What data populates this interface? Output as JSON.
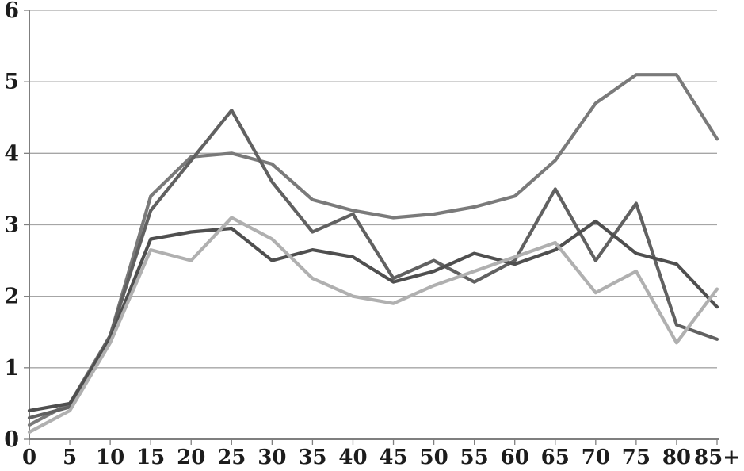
{
  "chart": {
    "background": "#ffffff",
    "axis_color": "#7f7f7f",
    "gridline_color": "#a6a6a6",
    "label_color": "#1c1c1c",
    "chart_data": {
      "type": "line",
      "title": "",
      "xlabel": "",
      "ylabel": "",
      "grid": true,
      "legend": "none",
      "ylim": [
        0,
        6
      ],
      "y_ticks": [
        0,
        1,
        2,
        3,
        4,
        5,
        6
      ],
      "categories": [
        "0",
        "5",
        "10",
        "15",
        "20",
        "25",
        "30",
        "35",
        "40",
        "45",
        "50",
        "55",
        "60",
        "65",
        "70",
        "75",
        "80",
        "85+"
      ],
      "series": [
        {
          "name": "medium-gray-line",
          "color": "#7a7a7a",
          "values": [
            0.2,
            0.5,
            1.45,
            3.4,
            3.95,
            4.0,
            3.85,
            3.35,
            3.2,
            3.1,
            3.15,
            3.25,
            3.4,
            3.9,
            4.7,
            5.1,
            5.1,
            4.2
          ]
        },
        {
          "name": "dark-gray-line",
          "color": "#616161",
          "values": [
            0.3,
            0.45,
            1.45,
            3.2,
            3.9,
            4.6,
            3.6,
            2.9,
            3.15,
            2.25,
            2.5,
            2.2,
            2.5,
            3.5,
            2.5,
            3.3,
            1.6,
            1.4
          ]
        },
        {
          "name": "darkest-gray-line",
          "color": "#4f4f4f",
          "values": [
            0.4,
            0.5,
            1.4,
            2.8,
            2.9,
            2.95,
            2.5,
            2.65,
            2.55,
            2.2,
            2.35,
            2.6,
            2.45,
            2.65,
            3.05,
            2.6,
            2.45,
            1.85
          ]
        },
        {
          "name": "light-gray-line",
          "color": "#b0b0b0",
          "values": [
            0.1,
            0.4,
            1.35,
            2.65,
            2.5,
            3.1,
            2.8,
            2.25,
            2.0,
            1.9,
            2.15,
            2.35,
            2.55,
            2.75,
            2.05,
            2.35,
            1.35,
            2.1
          ]
        }
      ]
    }
  }
}
